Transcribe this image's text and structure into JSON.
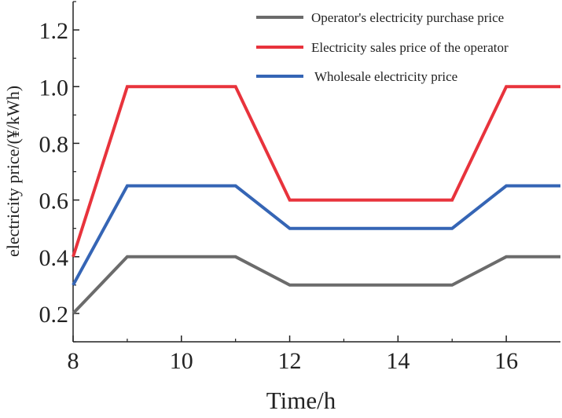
{
  "chart_data": {
    "type": "line",
    "title": "",
    "xlabel": "Time/h",
    "ylabel": "electricity price/(¥/kWh)",
    "xlim": [
      8,
      17
    ],
    "ylim": [
      0.1,
      1.3
    ],
    "xticks": [
      8,
      10,
      12,
      14,
      16
    ],
    "yticks": [
      0.2,
      0.4,
      0.6,
      0.8,
      1.0,
      1.2
    ],
    "xtick_labels": [
      "8",
      "10",
      "12",
      "14",
      "16"
    ],
    "ytick_labels": [
      "0.2",
      "0.4",
      "0.6",
      "0.8",
      "1.0",
      "1.2"
    ],
    "grid": false,
    "legend_position": "top-right",
    "series": [
      {
        "name": "Operator's electricity purchase price",
        "color": "#6b6b6b",
        "x": [
          8,
          9,
          11,
          12,
          15,
          16,
          17
        ],
        "y": [
          0.2,
          0.4,
          0.4,
          0.3,
          0.3,
          0.4,
          0.4
        ]
      },
      {
        "name": "Electricity sales price of the operator",
        "color": "#e8333c",
        "x": [
          8,
          9,
          11,
          12,
          15,
          16,
          17
        ],
        "y": [
          0.4,
          1.0,
          1.0,
          0.6,
          0.6,
          1.0,
          1.0
        ]
      },
      {
        "name": "Wholesale electricity price",
        "color": "#3565b5",
        "x": [
          8,
          9,
          11,
          12,
          15,
          16,
          17
        ],
        "y": [
          0.3,
          0.65,
          0.65,
          0.5,
          0.5,
          0.65,
          0.65
        ]
      }
    ]
  }
}
